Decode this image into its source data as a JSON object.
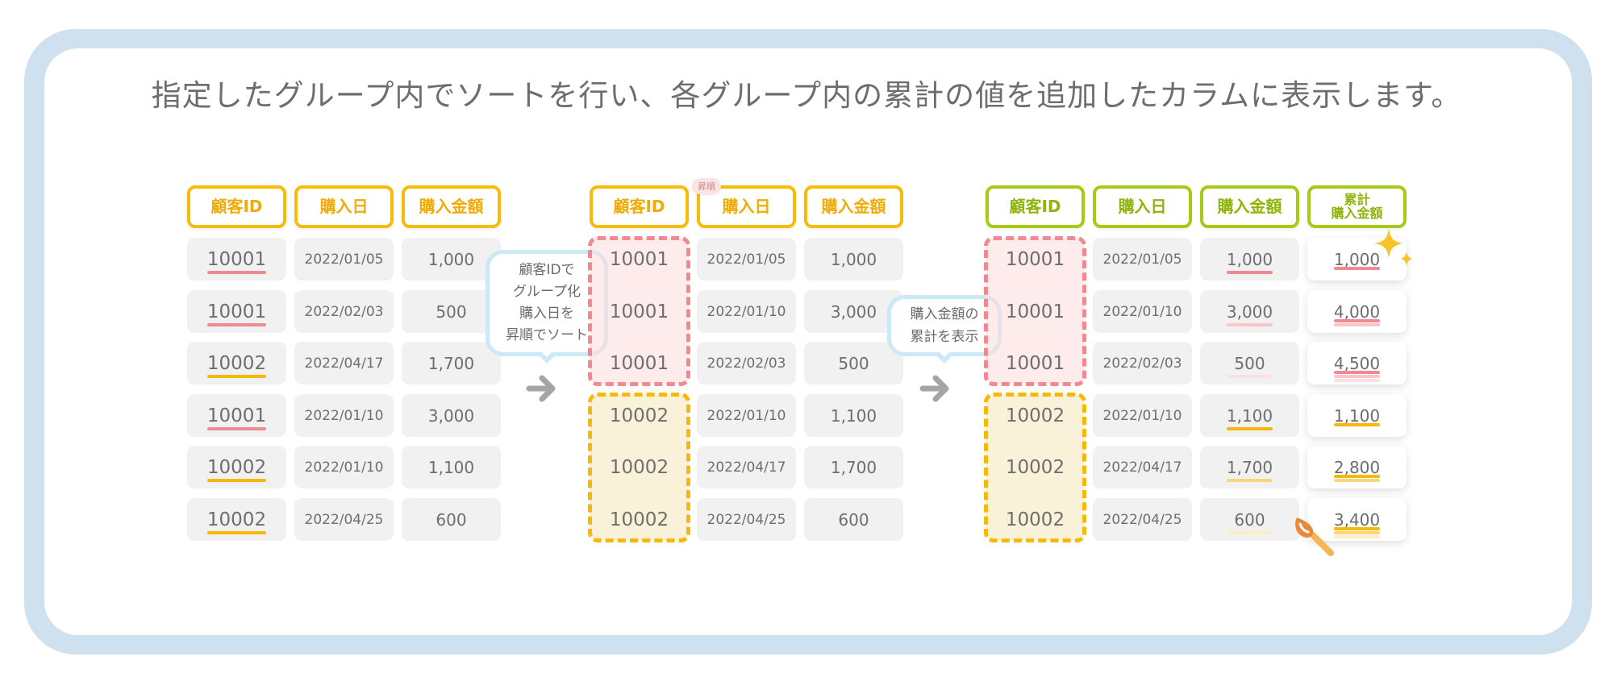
{
  "title": "指定したグループ内でソートを行い、各グループ内の累計の値を追加したカラムに表示します。",
  "colors": {
    "frame": "#cfe0ee",
    "header_yellow": "#f6bc06",
    "header_green": "#a6cb14",
    "group_pink": "#f08a90",
    "group_yellow": "#f6b80b",
    "bubble_border": "#cbe9f7"
  },
  "table_before": {
    "headers": [
      "顧客ID",
      "購入日",
      "購入金額"
    ],
    "rows": [
      {
        "id": "10001",
        "date": "2022/01/05",
        "amount": "1,000"
      },
      {
        "id": "10001",
        "date": "2022/02/03",
        "amount": "500"
      },
      {
        "id": "10002",
        "date": "2022/04/17",
        "amount": "1,700"
      },
      {
        "id": "10001",
        "date": "2022/01/10",
        "amount": "3,000"
      },
      {
        "id": "10002",
        "date": "2022/01/10",
        "amount": "1,100"
      },
      {
        "id": "10002",
        "date": "2022/04/25",
        "amount": "600"
      }
    ]
  },
  "bubble1": {
    "line1": "顧客IDで",
    "line2": "グループ化",
    "line3": "購入日を",
    "line4": "昇順でソート"
  },
  "table_sorted": {
    "badge": "昇順",
    "headers": [
      "顧客ID",
      "購入日",
      "購入金額"
    ],
    "rows": [
      {
        "id": "10001",
        "date": "2022/01/05",
        "amount": "1,000"
      },
      {
        "id": "10001",
        "date": "2022/01/10",
        "amount": "3,000"
      },
      {
        "id": "10001",
        "date": "2022/02/03",
        "amount": "500"
      },
      {
        "id": "10002",
        "date": "2022/01/10",
        "amount": "1,100"
      },
      {
        "id": "10002",
        "date": "2022/04/17",
        "amount": "1,700"
      },
      {
        "id": "10002",
        "date": "2022/04/25",
        "amount": "600"
      }
    ]
  },
  "bubble2": {
    "line1": "購入金額の",
    "line2": "累計を表示"
  },
  "table_result": {
    "headers": [
      "顧客ID",
      "購入日",
      "購入金額"
    ],
    "cumulative_header_line1": "累計",
    "cumulative_header_line2": "購入金額",
    "rows": [
      {
        "id": "10001",
        "date": "2022/01/05",
        "amount": "1,000",
        "cumulative": "1,000"
      },
      {
        "id": "10001",
        "date": "2022/01/10",
        "amount": "3,000",
        "cumulative": "4,000"
      },
      {
        "id": "10001",
        "date": "2022/02/03",
        "amount": "500",
        "cumulative": "4,500"
      },
      {
        "id": "10002",
        "date": "2022/01/10",
        "amount": "1,100",
        "cumulative": "1,100"
      },
      {
        "id": "10002",
        "date": "2022/04/17",
        "amount": "1,700",
        "cumulative": "2,800"
      },
      {
        "id": "10002",
        "date": "2022/04/25",
        "amount": "600",
        "cumulative": "3,400"
      }
    ]
  }
}
